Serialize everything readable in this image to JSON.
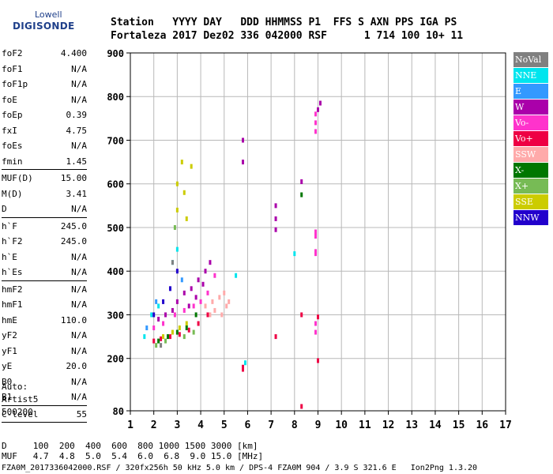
{
  "logo": {
    "line1": "Lowell",
    "line2": "DIGISONDE"
  },
  "header": {
    "line1": "Station   YYYY DAY   DDD HHMMSS P1  FFS S AXN PPS IGA PS",
    "line2": "Fortaleza 2017 Dez02 336 042000 RSF      1 714 100 10+ 11"
  },
  "params": [
    {
      "label": "foF2",
      "value": "4.400"
    },
    {
      "label": "foF1",
      "value": "N/A"
    },
    {
      "label": "foF1p",
      "value": "N/A"
    },
    {
      "label": "foE",
      "value": "N/A"
    },
    {
      "label": "foEp",
      "value": "0.39"
    },
    {
      "label": "fxI",
      "value": "4.75"
    },
    {
      "label": "foEs",
      "value": "N/A"
    },
    {
      "label": "fmin",
      "value": "1.45"
    },
    {
      "label": "MUF(D)",
      "value": "15.00"
    },
    {
      "label": "M(D)",
      "value": "3.41"
    },
    {
      "label": "D",
      "value": "N/A"
    },
    {
      "label": "h`F",
      "value": "245.0"
    },
    {
      "label": "h`F2",
      "value": "245.0"
    },
    {
      "label": "h`E",
      "value": "N/A"
    },
    {
      "label": "h`Es",
      "value": "N/A"
    },
    {
      "label": "hmF2",
      "value": "N/A"
    },
    {
      "label": "hmF1",
      "value": "N/A"
    },
    {
      "label": "hmE",
      "value": "110.0"
    },
    {
      "label": "yF2",
      "value": "N/A"
    },
    {
      "label": "yF1",
      "value": "N/A"
    },
    {
      "label": "yE",
      "value": "20.0"
    },
    {
      "label": "B0",
      "value": "N/A"
    },
    {
      "label": "B1",
      "value": "N/A"
    },
    {
      "label": "C-level",
      "value": "55"
    }
  ],
  "auto": {
    "line1": "Auto:",
    "line2": "Artist5",
    "line3": "500200"
  },
  "legend": [
    {
      "label": "NoVal",
      "color": "#808080"
    },
    {
      "label": "NNE",
      "color": "#00e5ee"
    },
    {
      "label": "E",
      "color": "#3399ff"
    },
    {
      "label": "W",
      "color": "#aa00aa"
    },
    {
      "label": "Vo-",
      "color": "#ff33cc"
    },
    {
      "label": "Vo+",
      "color": "#ee0044"
    },
    {
      "label": "SSW",
      "color": "#ffaaaa"
    },
    {
      "label": "X-",
      "color": "#007700"
    },
    {
      "label": "X+",
      "color": "#77bb55"
    },
    {
      "label": "SSE",
      "color": "#cccc00"
    },
    {
      "label": "NNW",
      "color": "#2200cc"
    }
  ],
  "bottom": {
    "line1": "D     100  200  400  600  800 1000 1500 3000 [km]",
    "line2": "MUF   4.7  4.8  5.0  5.4  6.0  6.8  9.0 15.0 [MHz]"
  },
  "footer": "FZA0M_2017336042000.RSF / 320fx256h 50 kHz 5.0 km / DPS-4 FZA0M 904 / 3.9 S 321.6 E   Ion2Png 1.3.20",
  "chart_data": {
    "type": "scatter",
    "xlabel": "",
    "ylabel": "",
    "xlim": [
      1,
      17
    ],
    "ylim": [
      80,
      900
    ],
    "x_ticks": [
      1,
      2,
      3,
      4,
      5,
      6,
      7,
      8,
      9,
      10,
      11,
      12,
      13,
      14,
      15,
      16,
      17
    ],
    "y_ticks": [
      80,
      200,
      300,
      400,
      500,
      600,
      700,
      800,
      900
    ],
    "series": [
      {
        "name": "W",
        "color": "#aa00aa",
        "points": [
          [
            2.2,
            290
          ],
          [
            2.5,
            300
          ],
          [
            3.0,
            330
          ],
          [
            3.3,
            350
          ],
          [
            3.6,
            360
          ],
          [
            3.9,
            380
          ],
          [
            4.2,
            400
          ],
          [
            4.4,
            420
          ],
          [
            3.8,
            340
          ],
          [
            4.1,
            370
          ],
          [
            2.8,
            310
          ],
          [
            3.5,
            320
          ],
          [
            5.8,
            700
          ],
          [
            5.8,
            650
          ],
          [
            7.2,
            550
          ],
          [
            7.2,
            520
          ],
          [
            7.2,
            495
          ],
          [
            8.3,
            605
          ],
          [
            9.0,
            770
          ],
          [
            9.1,
            785
          ]
        ]
      },
      {
        "name": "Vo-",
        "color": "#ff33cc",
        "points": [
          [
            2.0,
            270
          ],
          [
            2.4,
            280
          ],
          [
            2.9,
            300
          ],
          [
            3.3,
            310
          ],
          [
            3.7,
            320
          ],
          [
            4.0,
            330
          ],
          [
            4.3,
            350
          ],
          [
            4.6,
            390
          ],
          [
            8.9,
            760
          ],
          [
            8.9,
            740
          ],
          [
            8.9,
            720
          ],
          [
            8.9,
            490
          ],
          [
            8.9,
            480
          ],
          [
            8.9,
            445
          ],
          [
            8.9,
            440
          ],
          [
            8.9,
            280
          ],
          [
            8.9,
            260
          ]
        ]
      },
      {
        "name": "Vo+",
        "color": "#ee0044",
        "points": [
          [
            2.0,
            240
          ],
          [
            2.3,
            245
          ],
          [
            2.7,
            250
          ],
          [
            3.1,
            255
          ],
          [
            3.5,
            265
          ],
          [
            3.9,
            280
          ],
          [
            4.3,
            300
          ],
          [
            5.8,
            180
          ],
          [
            5.8,
            175
          ],
          [
            7.2,
            250
          ],
          [
            8.3,
            300
          ],
          [
            8.3,
            90
          ],
          [
            9.0,
            295
          ],
          [
            9.0,
            195
          ]
        ]
      },
      {
        "name": "SSW",
        "color": "#ffaaaa",
        "points": [
          [
            4.2,
            320
          ],
          [
            4.5,
            330
          ],
          [
            4.8,
            340
          ],
          [
            5.0,
            350
          ],
          [
            5.2,
            330
          ],
          [
            4.6,
            310
          ],
          [
            4.9,
            300
          ],
          [
            5.1,
            320
          ],
          [
            4.4,
            300
          ]
        ]
      },
      {
        "name": "NNE",
        "color": "#00e5ee",
        "points": [
          [
            1.6,
            250
          ],
          [
            1.9,
            300
          ],
          [
            2.2,
            320
          ],
          [
            2.8,
            420
          ],
          [
            3.0,
            450
          ],
          [
            5.5,
            390
          ],
          [
            5.9,
            190
          ],
          [
            8.0,
            440
          ]
        ]
      },
      {
        "name": "E",
        "color": "#3399ff",
        "points": [
          [
            1.7,
            270
          ],
          [
            2.1,
            330
          ],
          [
            3.2,
            380
          ]
        ]
      },
      {
        "name": "SSE",
        "color": "#cccc00",
        "points": [
          [
            2.4,
            250
          ],
          [
            2.8,
            260
          ],
          [
            3.1,
            270
          ],
          [
            3.4,
            280
          ],
          [
            3.0,
            600
          ],
          [
            3.2,
            650
          ],
          [
            3.3,
            580
          ],
          [
            3.6,
            640
          ],
          [
            3.0,
            540
          ],
          [
            3.4,
            520
          ]
        ]
      },
      {
        "name": "X-",
        "color": "#007700",
        "points": [
          [
            2.2,
            240
          ],
          [
            2.6,
            250
          ],
          [
            3.0,
            260
          ],
          [
            3.4,
            270
          ],
          [
            3.8,
            300
          ],
          [
            8.3,
            575
          ]
        ]
      },
      {
        "name": "X+",
        "color": "#77bb55",
        "points": [
          [
            2.1,
            230
          ],
          [
            2.5,
            240
          ],
          [
            3.3,
            250
          ],
          [
            3.7,
            260
          ],
          [
            2.9,
            500
          ]
        ]
      },
      {
        "name": "NNW",
        "color": "#2200cc",
        "points": [
          [
            2.0,
            300
          ],
          [
            2.4,
            330
          ],
          [
            2.7,
            360
          ],
          [
            3.0,
            400
          ]
        ]
      },
      {
        "name": "NoVal",
        "color": "#808080",
        "points": [
          [
            2.3,
            230
          ],
          [
            2.8,
            420
          ]
        ]
      }
    ]
  }
}
